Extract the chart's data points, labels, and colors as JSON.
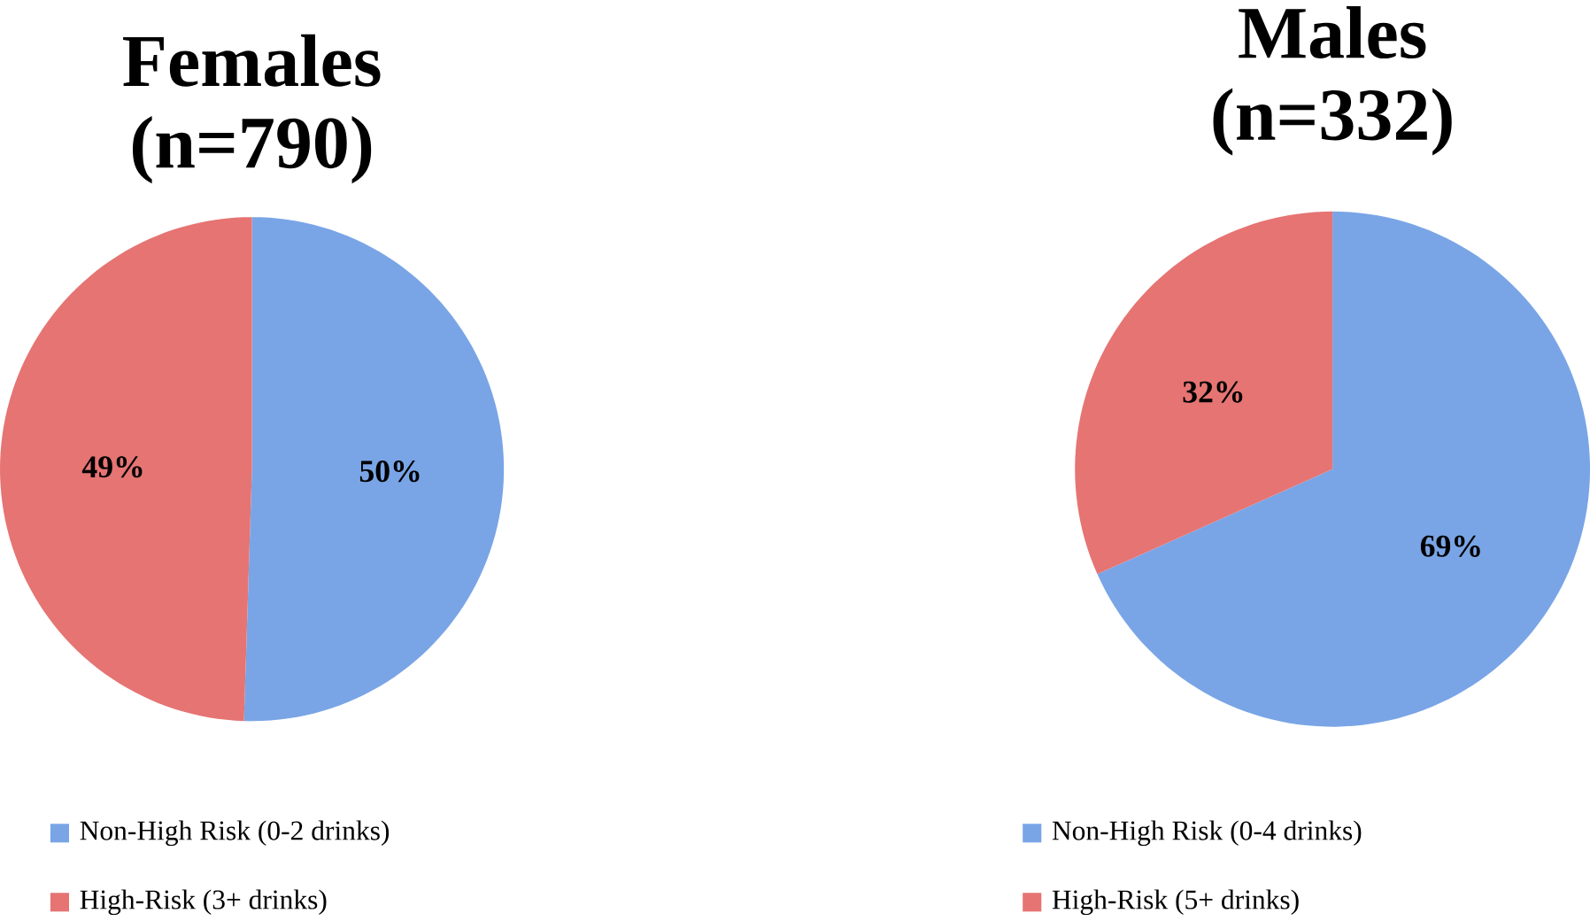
{
  "chart_data": [
    {
      "type": "pie",
      "title": "Females (n=790)",
      "categories": [
        "Non-High Risk (0-2 drinks)",
        "High-Risk (3+ drinks)"
      ],
      "values": [
        50,
        49
      ],
      "value_labels": [
        "50%",
        "49%"
      ],
      "colors": [
        "#79a5e6",
        "#e57473"
      ],
      "legend": "bottom"
    },
    {
      "type": "pie",
      "title": "Males (n=332)",
      "categories": [
        "Non-High Risk (0-4 drinks)",
        "High-Risk (5+ drinks)"
      ],
      "values": [
        69,
        32
      ],
      "value_labels": [
        "69%",
        "32%"
      ],
      "colors": [
        "#79a5e6",
        "#e57473"
      ],
      "legend": "bottom"
    }
  ]
}
